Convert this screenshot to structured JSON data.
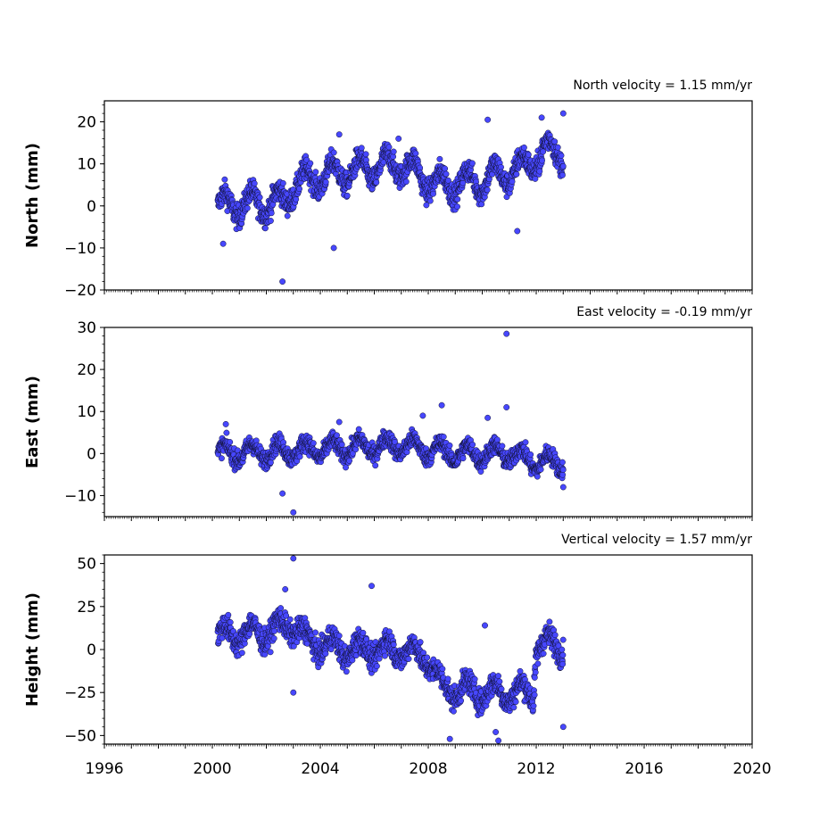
{
  "chart_data": [
    {
      "type": "scatter",
      "title": "North velocity = 1.15 mm/yr",
      "ylabel": "North (mm)",
      "xlim": [
        1996,
        2020
      ],
      "ylim": [
        -20,
        25
      ],
      "yticks": [
        -20,
        -10,
        0,
        10,
        20
      ],
      "ytick_labels": [
        "−20",
        "−10",
        "0",
        "10",
        "20"
      ],
      "xticks": [
        1996,
        2000,
        2004,
        2008,
        2012,
        2016,
        2020
      ],
      "xtick_labels": [],
      "series": [
        {
          "start": 2000.2,
          "end": 2013.0,
          "step": 0.009,
          "trend": [
            [
              2000.2,
              0
            ],
            [
              2002.7,
              1
            ],
            [
              2003.0,
              5
            ],
            [
              2004.0,
              7
            ],
            [
              2007.0,
              10
            ],
            [
              2008.3,
              5
            ],
            [
              2010.0,
              6
            ],
            [
              2011.5,
              9
            ],
            [
              2012.3,
              13
            ],
            [
              2013.0,
              13
            ]
          ],
          "amplitude": 3.0,
          "noise": 2.0,
          "outliers": [
            [
              2002.6,
              -18
            ],
            [
              2000.4,
              -9
            ],
            [
              2004.5,
              -10
            ],
            [
              2004.7,
              17
            ],
            [
              2010.2,
              20.5
            ],
            [
              2012.2,
              21
            ],
            [
              2013.0,
              22
            ],
            [
              2011.3,
              -6
            ],
            [
              2006.9,
              16
            ]
          ]
        }
      ]
    },
    {
      "type": "scatter",
      "title": "East velocity = -0.19 mm/yr",
      "ylabel": "East (mm)",
      "xlim": [
        1996,
        2020
      ],
      "ylim": [
        -15,
        30
      ],
      "yticks": [
        -10,
        0,
        10,
        20,
        30
      ],
      "ytick_labels": [
        "−10",
        "0",
        "10",
        "20",
        "30"
      ],
      "xticks": [
        1996,
        2000,
        2004,
        2008,
        2012,
        2016,
        2020
      ],
      "xtick_labels": [],
      "series": [
        {
          "start": 2000.2,
          "end": 2013.0,
          "step": 0.009,
          "trend": [
            [
              2000.2,
              0
            ],
            [
              2004.0,
              1
            ],
            [
              2007.0,
              2
            ],
            [
              2009.0,
              0
            ],
            [
              2011.0,
              0
            ],
            [
              2012.0,
              -2
            ],
            [
              2013.0,
              -2
            ]
          ],
          "amplitude": 2.0,
          "noise": 1.5,
          "outliers": [
            [
              2010.9,
              28.5
            ],
            [
              2003.0,
              -14
            ],
            [
              2002.6,
              -9.5
            ],
            [
              2008.5,
              11.5
            ],
            [
              2007.8,
              9
            ],
            [
              2000.5,
              7
            ],
            [
              2013.0,
              -8
            ],
            [
              2004.7,
              7.5
            ],
            [
              2010.2,
              8.5
            ],
            [
              2010.9,
              11
            ]
          ]
        }
      ]
    },
    {
      "type": "scatter",
      "title": "Vertical velocity = 1.57 mm/yr",
      "ylabel": "Height (mm)",
      "xlim": [
        1996,
        2020
      ],
      "ylim": [
        -55,
        55
      ],
      "yticks": [
        -50,
        -25,
        0,
        25,
        50
      ],
      "ytick_labels": [
        "−50",
        "−25",
        "0",
        "25",
        "50"
      ],
      "xticks": [
        1996,
        2000,
        2004,
        2008,
        2012,
        2016,
        2020
      ],
      "xtick_labels": [
        "1996",
        "2000",
        "2004",
        "2008",
        "2012",
        "2016",
        "2020"
      ],
      "series": [
        {
          "start": 2000.2,
          "end": 2013.0,
          "step": 0.009,
          "trend": [
            [
              2000.2,
              8
            ],
            [
              2002.0,
              10
            ],
            [
              2003.0,
              15
            ],
            [
              2003.5,
              5
            ],
            [
              2005.0,
              0
            ],
            [
              2007.0,
              0
            ],
            [
              2008.0,
              -5
            ],
            [
              2008.5,
              -22
            ],
            [
              2010.0,
              -25
            ],
            [
              2011.9,
              -25
            ],
            [
              2012.0,
              3
            ],
            [
              2013.0,
              3
            ]
          ],
          "amplitude": 6.0,
          "noise": 5.0,
          "outliers": [
            [
              2003.0,
              53
            ],
            [
              2005.9,
              37
            ],
            [
              2002.7,
              35
            ],
            [
              2008.8,
              -52
            ],
            [
              2010.5,
              -48
            ],
            [
              2010.6,
              -53
            ],
            [
              2013.0,
              -45
            ],
            [
              2010.1,
              14
            ],
            [
              2003.0,
              -25
            ]
          ]
        }
      ]
    }
  ]
}
